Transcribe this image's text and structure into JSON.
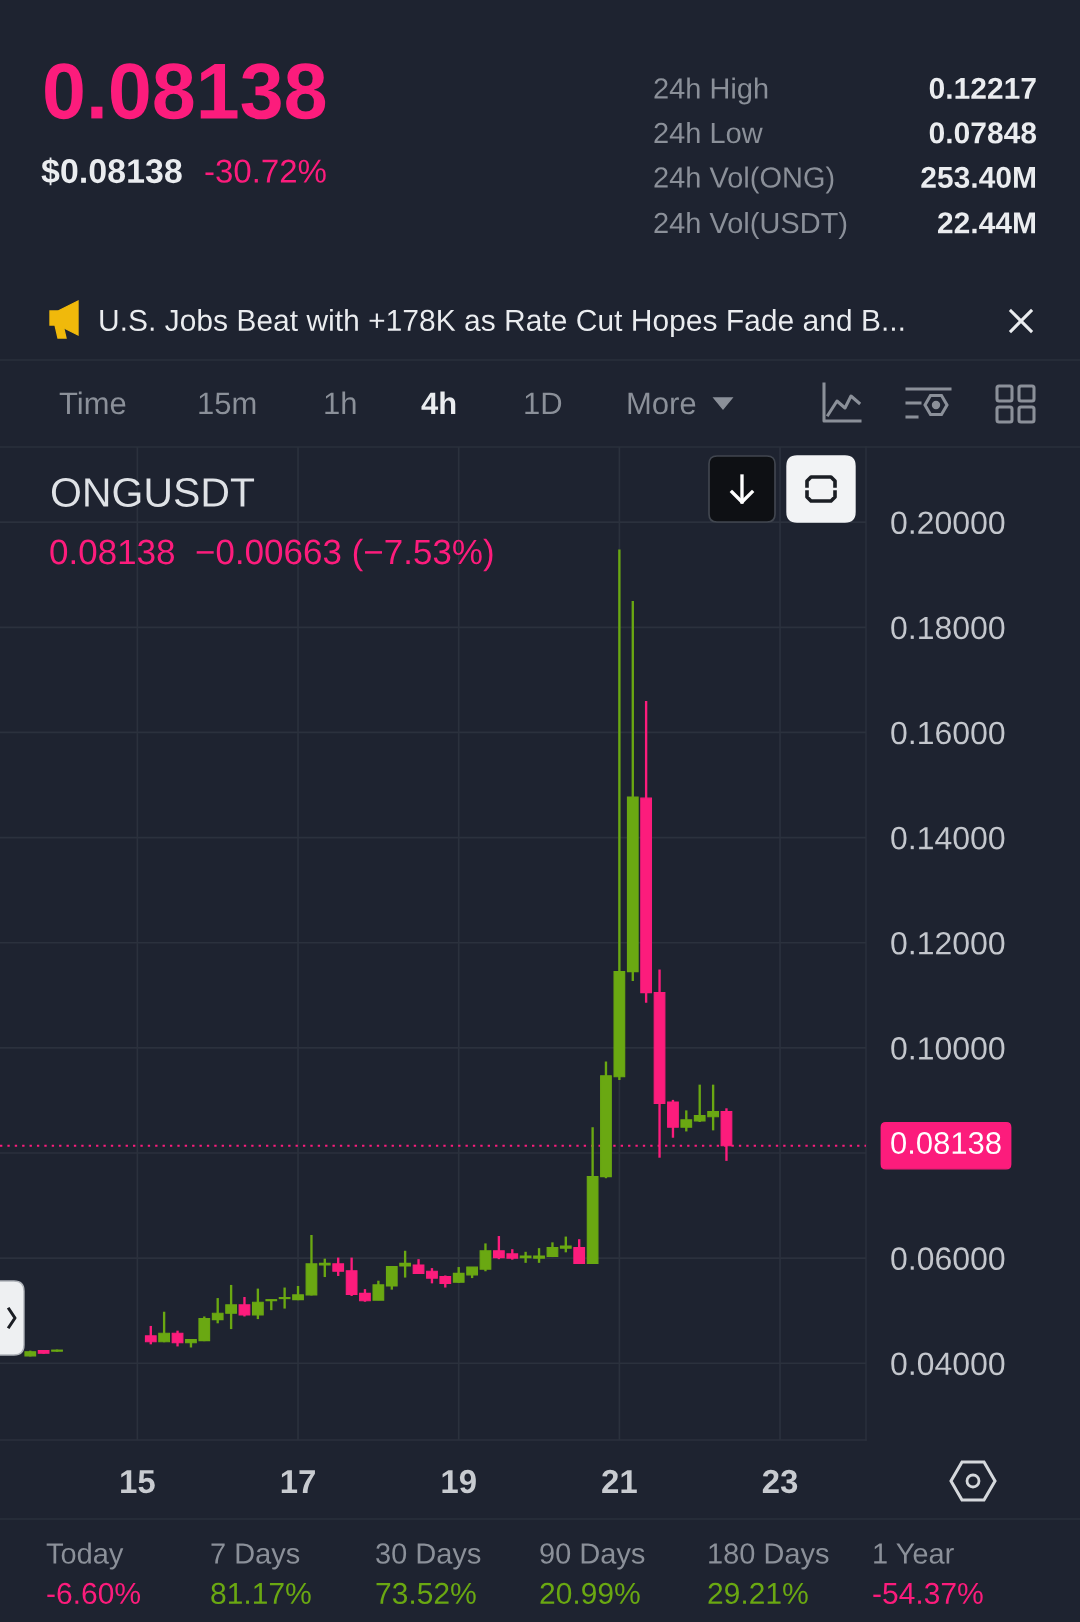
{
  "chart_data": {
    "type": "candlestick",
    "title": "ONGUSDT",
    "subtitle": "0.08138  −0.00663 (−7.53%)",
    "x": [
      13.667,
      13.833,
      14.0,
      15.167,
      15.333,
      15.5,
      15.667,
      15.833,
      16.0,
      16.167,
      16.333,
      16.5,
      16.667,
      16.833,
      17.0,
      17.167,
      17.333,
      17.5,
      17.667,
      17.833,
      18.0,
      18.167,
      18.333,
      18.5,
      18.667,
      18.833,
      19.0,
      19.167,
      19.333,
      19.5,
      19.667,
      19.833,
      20.0,
      20.167,
      20.333,
      20.5,
      20.667,
      20.833,
      21.0,
      21.167,
      21.333,
      21.5,
      21.667,
      21.833,
      22.0,
      22.167,
      22.333
    ],
    "ohlc": [
      [
        0.0414,
        0.0424,
        0.0413,
        0.0422
      ],
      [
        0.0424,
        0.0425,
        0.0418,
        0.0419
      ],
      [
        0.0423,
        0.0426,
        0.0422,
        0.0425
      ],
      [
        0.0452,
        0.0471,
        0.0436,
        0.0441
      ],
      [
        0.0441,
        0.0498,
        0.044,
        0.0457
      ],
      [
        0.0457,
        0.0462,
        0.0432,
        0.0439
      ],
      [
        0.0439,
        0.0446,
        0.043,
        0.0445
      ],
      [
        0.0443,
        0.0489,
        0.0442,
        0.0485
      ],
      [
        0.0483,
        0.0524,
        0.0476,
        0.0495
      ],
      [
        0.0495,
        0.0549,
        0.0465,
        0.0511
      ],
      [
        0.0511,
        0.0526,
        0.0489,
        0.0492
      ],
      [
        0.0492,
        0.0542,
        0.0484,
        0.0516
      ],
      [
        0.0519,
        0.0521,
        0.0501,
        0.0521
      ],
      [
        0.0523,
        0.0544,
        0.0504,
        0.0525
      ],
      [
        0.0521,
        0.0547,
        0.052,
        0.053
      ],
      [
        0.053,
        0.0644,
        0.0529,
        0.0589
      ],
      [
        0.0587,
        0.0599,
        0.0564,
        0.059
      ],
      [
        0.0589,
        0.0601,
        0.0566,
        0.0575
      ],
      [
        0.0576,
        0.0601,
        0.0528,
        0.0531
      ],
      [
        0.0533,
        0.0541,
        0.0517,
        0.0519
      ],
      [
        0.052,
        0.0557,
        0.052,
        0.0549
      ],
      [
        0.0547,
        0.0584,
        0.054,
        0.0584
      ],
      [
        0.0585,
        0.0614,
        0.0563,
        0.059
      ],
      [
        0.0587,
        0.0598,
        0.057,
        0.0571
      ],
      [
        0.0575,
        0.0581,
        0.0552,
        0.0562
      ],
      [
        0.0565,
        0.0567,
        0.0544,
        0.0552
      ],
      [
        0.0554,
        0.0583,
        0.0553,
        0.0571
      ],
      [
        0.0568,
        0.0583,
        0.0562,
        0.0583
      ],
      [
        0.0579,
        0.0628,
        0.0575,
        0.0614
      ],
      [
        0.0614,
        0.0642,
        0.0598,
        0.0601
      ],
      [
        0.0608,
        0.0617,
        0.0597,
        0.06
      ],
      [
        0.0601,
        0.0612,
        0.0591,
        0.0604
      ],
      [
        0.06,
        0.0619,
        0.0591,
        0.0604
      ],
      [
        0.0603,
        0.063,
        0.0602,
        0.062
      ],
      [
        0.0619,
        0.0641,
        0.0611,
        0.0623
      ],
      [
        0.062,
        0.0636,
        0.0589,
        0.059
      ],
      [
        0.059,
        0.0849,
        0.0589,
        0.0755
      ],
      [
        0.0755,
        0.0974,
        0.0752,
        0.0947
      ],
      [
        0.0945,
        0.1948,
        0.0939,
        0.1145
      ],
      [
        0.1145,
        0.185,
        0.1127,
        0.1477
      ],
      [
        0.1475,
        0.166,
        0.1086,
        0.1105
      ],
      [
        0.1105,
        0.1149,
        0.0791,
        0.0894
      ],
      [
        0.0897,
        0.0901,
        0.0829,
        0.0849
      ],
      [
        0.0849,
        0.0881,
        0.0841,
        0.0863
      ],
      [
        0.0861,
        0.093,
        0.0859,
        0.0871
      ],
      [
        0.0869,
        0.093,
        0.0843,
        0.0879
      ],
      [
        0.0879,
        0.0885,
        0.0785,
        0.08138
      ]
    ],
    "colors": [
      "#6aa812",
      "#fc1c7c",
      "#6aa812",
      "#fc1c7c",
      "#6aa812",
      "#fc1c7c",
      "#6aa812",
      "#6aa812",
      "#6aa812",
      "#6aa812",
      "#fc1c7c",
      "#6aa812",
      "#6aa812",
      "#6aa812",
      "#6aa812",
      "#6aa812",
      "#6aa812",
      "#fc1c7c",
      "#fc1c7c",
      "#fc1c7c",
      "#6aa812",
      "#6aa812",
      "#6aa812",
      "#fc1c7c",
      "#fc1c7c",
      "#fc1c7c",
      "#6aa812",
      "#6aa812",
      "#6aa812",
      "#fc1c7c",
      "#fc1c7c",
      "#6aa812",
      "#6aa812",
      "#6aa812",
      "#6aa812",
      "#fc1c7c",
      "#6aa812",
      "#6aa812",
      "#6aa812",
      "#6aa812",
      "#fc1c7c",
      "#fc1c7c",
      "#fc1c7c",
      "#6aa812",
      "#6aa812",
      "#6aa812",
      "#fc1c7c"
    ],
    "xlim": [
      13.29,
      24.07
    ],
    "xticks": [
      15,
      17,
      19,
      21,
      23
    ],
    "ylim": [
      0.0254,
      0.2143
    ],
    "yticks": [
      {
        "value": 0.04,
        "label": "0.04000"
      },
      {
        "value": 0.06,
        "label": "0.06000"
      },
      {
        "value": 0.08,
        "label": null
      },
      {
        "value": 0.1,
        "label": "0.10000"
      },
      {
        "value": 0.12,
        "label": "0.12000"
      },
      {
        "value": 0.14,
        "label": "0.14000"
      },
      {
        "value": 0.16,
        "label": "0.16000"
      },
      {
        "value": 0.18,
        "label": "0.18000"
      },
      {
        "value": 0.2,
        "label": "0.20000"
      }
    ],
    "grid": true,
    "ref_lines": [
      {
        "axis": "y",
        "value": 0.08138,
        "label": "0.08138",
        "color": "#fc1c7c",
        "line_style": "dotted"
      }
    ],
    "annotations": [
      "0.08138",
      "$0.08138",
      "-30.72%",
      "24h High",
      "0.12217",
      "24h Low",
      "0.07848",
      "24h Vol(ONG)",
      "253.40M",
      "24h Vol(USDT)",
      "22.44M",
      "U.S. Jobs Beat with +178K as Rate Cut Hopes Fade and B...",
      "Time",
      "15m",
      "1h",
      "4h",
      "1D",
      "More",
      "Today",
      "-6.60%",
      "7 Days",
      "81.17%",
      "30 Days",
      "73.52%",
      "90 Days",
      "20.99%",
      "180 Days",
      "29.21%",
      "1 Year",
      "-54.37%"
    ]
  }
}
